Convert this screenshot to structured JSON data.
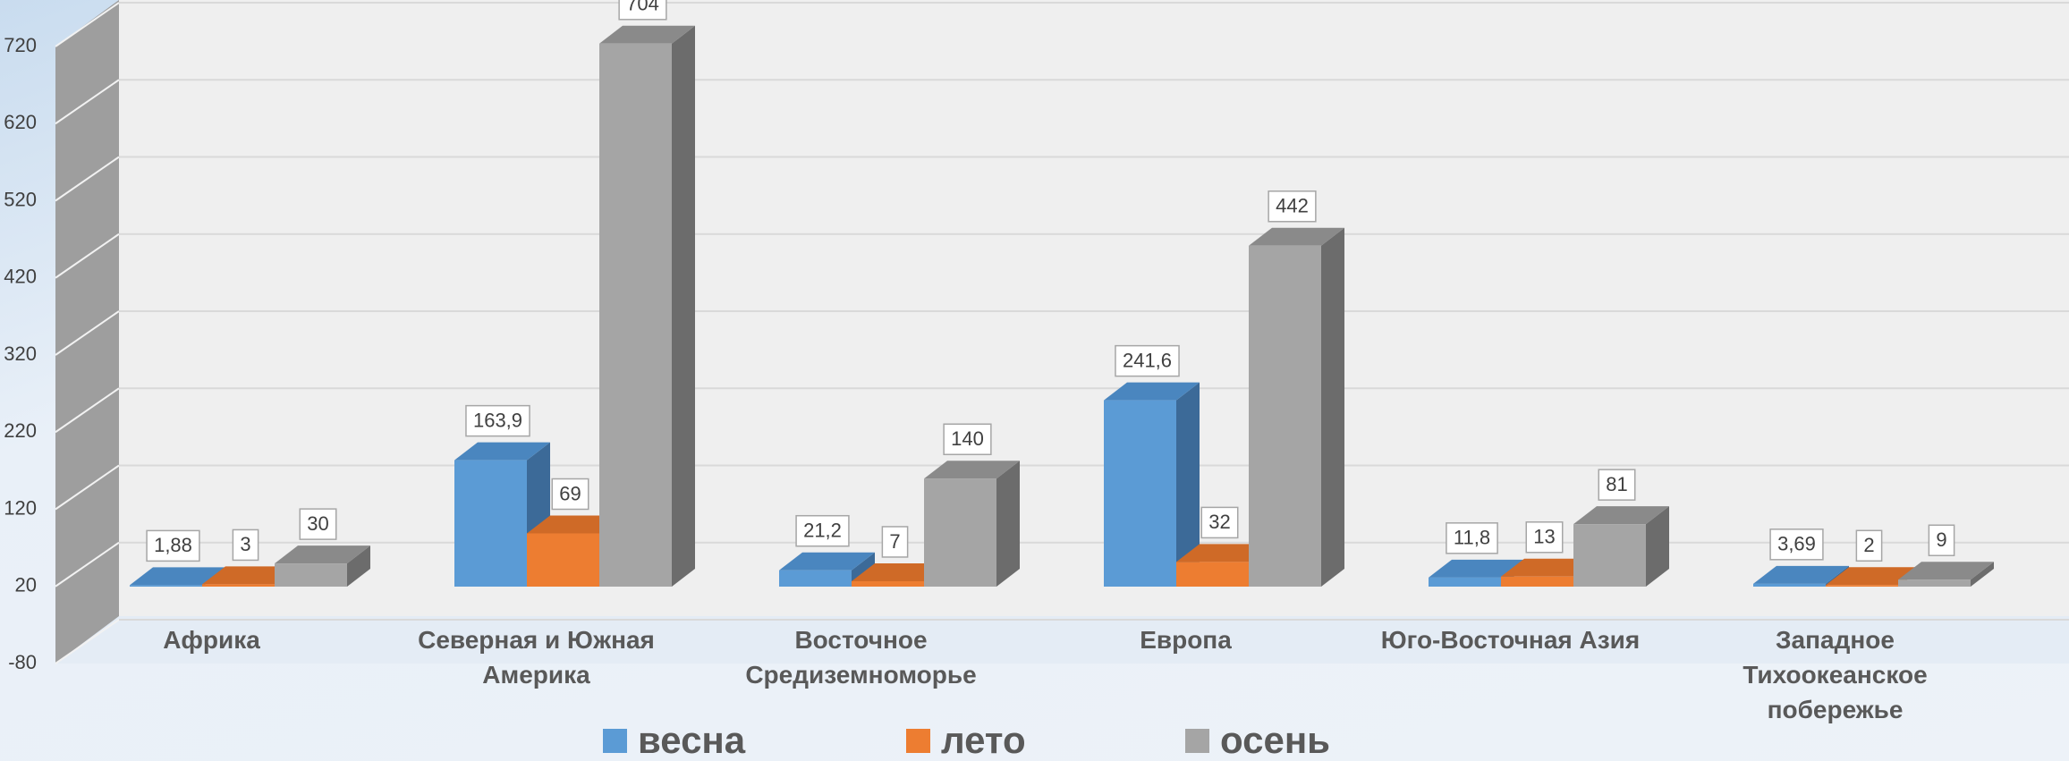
{
  "chart_data": {
    "type": "bar3d",
    "categories": [
      "Африка",
      "Северная и Южная Америка",
      "Восточное Средиземноморье",
      "Европа",
      "Юго-Восточная Азия",
      "Западное Тихоокеанское побережье"
    ],
    "series": [
      {
        "name": "весна",
        "color": "#5b9bd5",
        "side": "#3c6a98",
        "top": "#4a86bf",
        "values": [
          1.88,
          163.9,
          21.2,
          241.6,
          11.8,
          3.69
        ],
        "value_labels": [
          "1,88",
          "163,9",
          "21,2",
          "241,6",
          "11,8",
          "3,69"
        ]
      },
      {
        "name": "лето",
        "color": "#ed7d31",
        "side": "#b05b22",
        "top": "#cf6a27",
        "values": [
          3,
          69,
          7,
          32,
          13,
          2
        ]
      },
      {
        "name": "осень",
        "color": "#a5a5a5",
        "side": "#6c6c6c",
        "top": "#8a8a8a",
        "values": [
          30,
          704,
          140,
          442,
          81,
          9
        ]
      }
    ],
    "ylim": [
      -80,
      720
    ],
    "yticks": [
      -80,
      20,
      120,
      220,
      320,
      420,
      520,
      620,
      720
    ],
    "grid": true,
    "legend": "bottom"
  }
}
